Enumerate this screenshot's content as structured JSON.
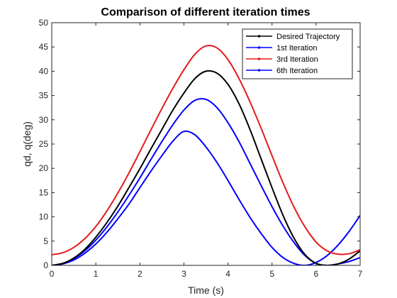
{
  "chart_data": {
    "type": "line",
    "title": "Comparison of different iteration times",
    "xlabel": "Time (s)",
    "ylabel": "qd, q(deg)",
    "xlim": [
      0,
      7
    ],
    "ylim": [
      0,
      50
    ],
    "x_ticks": [
      "0",
      "1",
      "2",
      "3",
      "4",
      "5",
      "6",
      "7"
    ],
    "y_ticks": [
      "0",
      "5",
      "10",
      "15",
      "20",
      "25",
      "30",
      "35",
      "40",
      "45",
      "50"
    ],
    "grid": false,
    "legend_position": "top-right",
    "series": [
      {
        "name": "Desired Trajectory",
        "color": "#000000",
        "x": [
          0,
          0.25,
          0.5,
          0.75,
          1.0,
          1.25,
          1.5,
          1.75,
          2.0,
          2.25,
          2.5,
          2.75,
          3.0,
          3.25,
          3.5,
          3.75,
          4.0,
          4.25,
          4.5,
          4.75,
          5.0,
          5.25,
          5.5,
          5.75,
          6.0,
          6.25,
          6.5,
          6.75,
          7.0
        ],
        "y": [
          0.0,
          0.4,
          1.5,
          3.3,
          5.8,
          8.8,
          12.2,
          16.0,
          19.9,
          24.0,
          28.0,
          32.0,
          35.5,
          38.5,
          40.0,
          39.6,
          37.3,
          33.3,
          28.0,
          22.0,
          16.0,
          10.3,
          5.6,
          2.2,
          0.4,
          0.0,
          0.3,
          1.3,
          3.0
        ]
      },
      {
        "name": "1st Iteration",
        "color": "#0000ff",
        "x": [
          0,
          0.25,
          0.5,
          0.75,
          1.0,
          1.25,
          1.5,
          1.75,
          2.0,
          2.25,
          2.5,
          2.75,
          3.0,
          3.25,
          3.5,
          3.75,
          4.0,
          4.25,
          4.5,
          4.75,
          5.0,
          5.25,
          5.5,
          5.75,
          6.0,
          6.25,
          6.5,
          6.75,
          7.0
        ],
        "y": [
          0.0,
          0.3,
          1.1,
          2.5,
          4.4,
          6.8,
          9.6,
          12.6,
          16.0,
          19.4,
          22.6,
          25.6,
          27.6,
          26.9,
          24.4,
          21.2,
          17.5,
          13.6,
          9.9,
          6.6,
          3.7,
          1.6,
          0.4,
          0.0,
          0.6,
          2.0,
          4.2,
          7.0,
          10.3
        ]
      },
      {
        "name": "3rd Iteration",
        "color": "#e31a1c",
        "x": [
          0,
          0.25,
          0.5,
          0.75,
          1.0,
          1.25,
          1.5,
          1.75,
          2.0,
          2.25,
          2.5,
          2.75,
          3.0,
          3.25,
          3.5,
          3.75,
          4.0,
          4.25,
          4.5,
          4.75,
          5.0,
          5.25,
          5.5,
          5.75,
          6.0,
          6.25,
          6.5,
          6.75,
          7.0
        ],
        "y": [
          2.2,
          2.6,
          3.7,
          5.5,
          8.0,
          11.2,
          14.9,
          19.0,
          23.4,
          27.9,
          32.3,
          36.5,
          40.3,
          43.5,
          45.2,
          44.8,
          42.4,
          38.5,
          33.7,
          28.3,
          22.6,
          17.0,
          12.0,
          7.9,
          4.8,
          3.0,
          2.3,
          2.4,
          3.2
        ]
      },
      {
        "name": "6th Iteration",
        "color": "#0000ff",
        "x": [
          0,
          0.25,
          0.5,
          0.75,
          1.0,
          1.25,
          1.5,
          1.75,
          2.0,
          2.25,
          2.5,
          2.75,
          3.0,
          3.25,
          3.5,
          3.75,
          4.0,
          4.25,
          4.5,
          4.75,
          5.0,
          5.25,
          5.5,
          5.75,
          6.0,
          6.25,
          6.5,
          6.75,
          7.0
        ],
        "y": [
          0.0,
          0.4,
          1.4,
          3.0,
          5.2,
          7.9,
          11.0,
          14.4,
          18.0,
          21.8,
          25.5,
          29.0,
          32.0,
          34.0,
          34.2,
          32.5,
          29.4,
          25.5,
          21.0,
          16.5,
          12.1,
          8.1,
          4.7,
          2.0,
          0.4,
          0.0,
          0.3,
          0.8,
          1.6
        ]
      }
    ]
  }
}
